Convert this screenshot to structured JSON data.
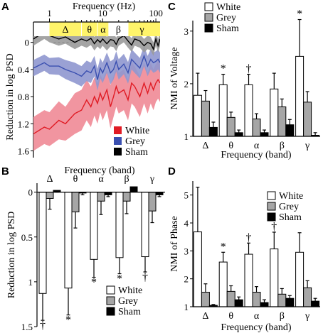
{
  "colors": {
    "white": "#ffffff",
    "grey": "#a6a6a6",
    "sham": "#000000",
    "red_line": "#e01b24",
    "red_band": "#f08a96",
    "blue_line": "#3a4fb0",
    "blue_band": "#8f97cf",
    "black_band": "#9a9a9a",
    "yellow": "#fff46a"
  },
  "chart_data": [
    {
      "panel": "A",
      "type": "line",
      "xlabel": "Frequency (Hz)",
      "ylabel": "Reduction in log PSD",
      "xscale": "log",
      "xlim": [
        0.5,
        120
      ],
      "xticks": [
        1,
        10,
        100
      ],
      "xtick_labels": [
        "1",
        "10",
        "100"
      ],
      "ylim": [
        1.7,
        -0.3
      ],
      "y_inverted": true,
      "yticks": [
        0,
        0.4,
        0.8,
        1.2,
        1.6
      ],
      "ytick_labels": [
        "0",
        "0.4",
        "0.8",
        "1.2",
        "1.6"
      ],
      "band_labels": [
        "Δ",
        "θ",
        "α",
        "β",
        "γ"
      ],
      "band_ranges_hz": [
        [
          1,
          4
        ],
        [
          4,
          8
        ],
        [
          8,
          13
        ],
        [
          13,
          30
        ],
        [
          30,
          100
        ]
      ],
      "legend": [
        "White",
        "Grey",
        "Sham"
      ],
      "legend_placement": "bottom-right",
      "series": [
        {
          "name": "White",
          "x": [
            0.5,
            0.8,
            1,
            1.5,
            2,
            3,
            4,
            5,
            6,
            7,
            8,
            9,
            10,
            12,
            14,
            16,
            18,
            20,
            25,
            30,
            35,
            40,
            50,
            60,
            70,
            80,
            90,
            100,
            110,
            120
          ],
          "y": [
            1.35,
            1.25,
            1.28,
            1.15,
            1.2,
            1.05,
            1.0,
            0.85,
            0.95,
            0.8,
            0.9,
            0.75,
            0.85,
            0.7,
            0.95,
            0.8,
            0.65,
            0.75,
            0.7,
            0.85,
            0.6,
            0.65,
            0.8,
            0.6,
            0.75,
            0.6,
            0.7,
            0.6,
            0.55,
            0.6
          ],
          "err": [
            0.25,
            0.25,
            0.25,
            0.28,
            0.25,
            0.3,
            0.3,
            0.3,
            0.3,
            0.28,
            0.3,
            0.28,
            0.3,
            0.3,
            0.32,
            0.3,
            0.3,
            0.3,
            0.3,
            0.3,
            0.3,
            0.3,
            0.3,
            0.3,
            0.3,
            0.3,
            0.3,
            0.28,
            0.28,
            0.28
          ]
        },
        {
          "name": "Grey",
          "x": [
            0.5,
            0.8,
            1,
            1.5,
            2,
            3,
            4,
            5,
            6,
            7,
            8,
            9,
            10,
            12,
            14,
            16,
            18,
            20,
            25,
            30,
            35,
            40,
            50,
            60,
            70,
            80,
            90,
            100,
            110,
            120
          ],
          "y": [
            0.38,
            0.3,
            0.35,
            0.35,
            0.4,
            0.45,
            0.5,
            0.42,
            0.45,
            0.35,
            0.55,
            0.38,
            0.45,
            0.3,
            0.45,
            0.4,
            0.28,
            0.4,
            0.32,
            0.45,
            0.25,
            0.3,
            0.38,
            0.2,
            0.35,
            0.25,
            0.3,
            0.28,
            0.25,
            0.3
          ],
          "err": [
            0.12,
            0.12,
            0.12,
            0.13,
            0.14,
            0.15,
            0.15,
            0.15,
            0.15,
            0.15,
            0.16,
            0.15,
            0.15,
            0.15,
            0.17,
            0.15,
            0.15,
            0.15,
            0.15,
            0.16,
            0.15,
            0.15,
            0.15,
            0.15,
            0.15,
            0.15,
            0.15,
            0.15,
            0.15,
            0.15
          ]
        },
        {
          "name": "Sham",
          "x": [
            0.5,
            0.8,
            1,
            1.5,
            2,
            3,
            4,
            5,
            6,
            7,
            8,
            9,
            10,
            12,
            14,
            16,
            18,
            20,
            25,
            30,
            35,
            40,
            50,
            60,
            70,
            80,
            90,
            100,
            110,
            120
          ],
          "y": [
            -0.05,
            -0.15,
            -0.1,
            -0.05,
            -0.08,
            0.0,
            -0.05,
            -0.02,
            -0.06,
            0.02,
            -0.04,
            0.0,
            -0.05,
            0.02,
            -0.04,
            -0.03,
            0.03,
            -0.05,
            -0.1,
            -0.02,
            0.04,
            -0.05,
            -0.02,
            0.05,
            0.0,
            0.02,
            0.1,
            -0.05,
            0.05,
            -0.05
          ],
          "err": [
            0.1,
            0.1,
            0.1,
            0.1,
            0.1,
            0.1,
            0.1,
            0.1,
            0.1,
            0.1,
            0.1,
            0.1,
            0.1,
            0.1,
            0.1,
            0.1,
            0.1,
            0.1,
            0.1,
            0.1,
            0.1,
            0.1,
            0.1,
            0.1,
            0.1,
            0.1,
            0.1,
            0.1,
            0.1,
            0.1
          ]
        }
      ]
    },
    {
      "panel": "B",
      "type": "bar",
      "xlabel": "Frequency (band)",
      "ylabel": "Reduction in log PSD",
      "categories": [
        "Δ",
        "θ",
        "α",
        "β",
        "γ"
      ],
      "ylim": [
        -0.1,
        1.5
      ],
      "y_inverted": true,
      "yticks": [
        0,
        0.5,
        1,
        1.5
      ],
      "ytick_labels": [
        "0",
        "0.5",
        "1",
        "1.5"
      ],
      "legend": [
        "White",
        "Grey",
        "Sham"
      ],
      "legend_placement": "bottom-right",
      "series": [
        {
          "name": "White",
          "values": [
            1.13,
            1.07,
            0.75,
            0.73,
            0.72
          ],
          "err": [
            0.3,
            0.3,
            0.2,
            0.18,
            0.17
          ]
        },
        {
          "name": "Grey",
          "values": [
            0.07,
            0.22,
            0.1,
            0.1,
            0.21
          ],
          "err": [
            0.12,
            0.18,
            0.15,
            0.14,
            0.13
          ]
        },
        {
          "name": "Sham",
          "values": [
            -0.02,
            0.01,
            0.03,
            -0.06,
            0.03
          ],
          "err": [
            0.02,
            0.02,
            0.02,
            0.02,
            0.02
          ]
        }
      ],
      "annotations": [
        {
          "category": "Δ",
          "text": "†"
        },
        {
          "category": "θ",
          "text": "*"
        },
        {
          "category": "α",
          "text": "*"
        },
        {
          "category": "β",
          "text": "*"
        },
        {
          "category": "γ",
          "text": "†"
        }
      ]
    },
    {
      "panel": "C",
      "type": "bar",
      "xlabel": "Frequency (band)",
      "ylabel": "NMI of Voltage",
      "categories": [
        "Δ",
        "θ",
        "α",
        "β",
        "γ"
      ],
      "ylim": [
        1,
        3.2
      ],
      "yticks": [
        1,
        2,
        3
      ],
      "ytick_labels": [
        "1",
        "2",
        "3"
      ],
      "legend": [
        "White",
        "Grey",
        "Sham"
      ],
      "legend_placement": "top-left",
      "series": [
        {
          "name": "White",
          "values": [
            1.78,
            1.98,
            1.98,
            1.9,
            2.52
          ],
          "err": [
            0.42,
            0.2,
            0.2,
            0.3,
            0.7
          ]
        },
        {
          "name": "Grey",
          "values": [
            1.67,
            1.36,
            1.33,
            1.56,
            1.65
          ],
          "err": [
            0.2,
            0.1,
            0.1,
            0.15,
            0.2
          ]
        },
        {
          "name": "Sham",
          "values": [
            1.17,
            1.07,
            1.07,
            1.22,
            1.02
          ],
          "err": [
            0.1,
            0.05,
            0.05,
            0.1,
            0.05
          ]
        }
      ],
      "annotations": [
        {
          "category": "θ",
          "text": "*"
        },
        {
          "category": "α",
          "text": "†"
        },
        {
          "category": "γ",
          "text": "*"
        }
      ]
    },
    {
      "panel": "D",
      "type": "bar",
      "xlabel": "Frequency (band)",
      "ylabel": "NMI of Phase",
      "categories": [
        "Δ",
        "θ",
        "α",
        "β",
        "γ"
      ],
      "ylim": [
        1,
        5.5
      ],
      "yticks": [
        1,
        2,
        3,
        4,
        5
      ],
      "ytick_labels": [
        "1",
        "2",
        "3",
        "4",
        "5"
      ],
      "legend": [
        "White",
        "Grey",
        "Sham"
      ],
      "legend_placement": "top-right",
      "series": [
        {
          "name": "White",
          "values": [
            3.68,
            2.6,
            2.88,
            3.07,
            2.95
          ],
          "err": [
            1.6,
            0.35,
            0.4,
            0.6,
            0.7
          ]
        },
        {
          "name": "Grey",
          "values": [
            1.52,
            1.55,
            1.52,
            1.45,
            1.68
          ],
          "err": [
            0.3,
            0.2,
            0.2,
            0.2,
            0.25
          ]
        },
        {
          "name": "Sham",
          "values": [
            1.05,
            1.25,
            1.15,
            1.3,
            1.2
          ],
          "err": [
            0.03,
            0.1,
            0.1,
            0.1,
            0.1
          ]
        }
      ],
      "annotations": [
        {
          "category": "θ",
          "text": "*"
        },
        {
          "category": "α",
          "text": "†"
        },
        {
          "category": "β",
          "text": "†"
        }
      ]
    }
  ]
}
